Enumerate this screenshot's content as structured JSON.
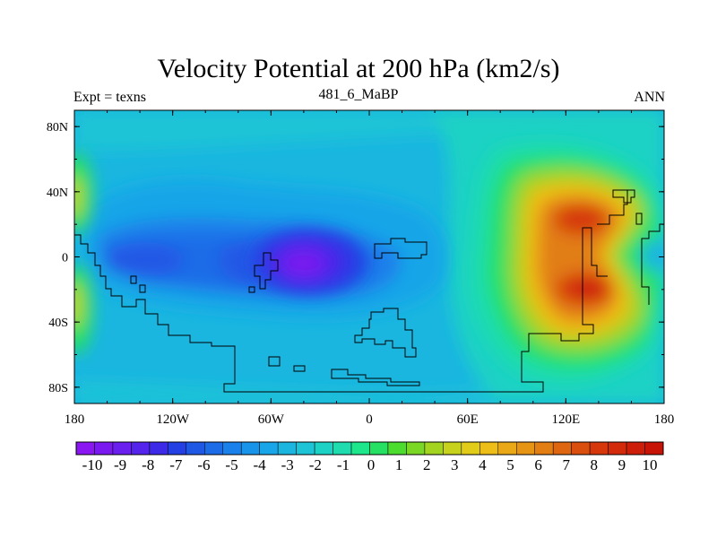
{
  "chart_data": {
    "type": "heatmap",
    "title": "Velocity Potential at 200 hPa (km2/s)",
    "left_string": "Expt = texns",
    "center_string": "481_6_MaBP",
    "right_string": "ANN",
    "x_axis": {
      "range": [
        -180,
        180
      ],
      "ticks": [
        {
          "value": -180,
          "label": "180"
        },
        {
          "value": -120,
          "label": "120W"
        },
        {
          "value": -60,
          "label": "60W"
        },
        {
          "value": 0,
          "label": "0"
        },
        {
          "value": 60,
          "label": "60E"
        },
        {
          "value": 120,
          "label": "120E"
        },
        {
          "value": 180,
          "label": "180"
        }
      ]
    },
    "y_axis": {
      "range": [
        -90,
        90
      ],
      "ticks": [
        {
          "value": 80,
          "label": "80N"
        },
        {
          "value": 40,
          "label": "40N"
        },
        {
          "value": 0,
          "label": "0"
        },
        {
          "value": -40,
          "label": "40S"
        },
        {
          "value": -80,
          "label": "80S"
        }
      ]
    },
    "colorbar": {
      "labels": [
        "-10",
        "-9",
        "-8",
        "-7",
        "-6",
        "-5",
        "-4",
        "-3",
        "-2",
        "-1",
        "0",
        "1",
        "2",
        "3",
        "4",
        "5",
        "6",
        "7",
        "8",
        "9",
        "10"
      ],
      "colors": [
        "#8a16f2",
        "#7a1af0",
        "#6a20ee",
        "#5424ec",
        "#3c2ae8",
        "#2440e4",
        "#2058e6",
        "#1c6ce8",
        "#1a80ea",
        "#1894ea",
        "#18a6e8",
        "#1ab6e0",
        "#1cc4d6",
        "#1cd2c4",
        "#1edcae",
        "#1ee68a",
        "#26e064",
        "#4cdc2e",
        "#7ad824",
        "#a2d420",
        "#c6d21c",
        "#e2cc1a",
        "#eebe18",
        "#eaa816",
        "#e69414",
        "#e27e12",
        "#de6610",
        "#da4e0e",
        "#d6380c",
        "#d22a0a",
        "#cc1e08",
        "#c81406"
      ]
    },
    "features": [
      {
        "name": "central-pacific-low",
        "lon": -30,
        "lat": -5,
        "value": -9.5
      },
      {
        "name": "south-pacific-low",
        "lon": -150,
        "lat": 0,
        "value": -5.5
      },
      {
        "name": "asian-high-north",
        "lon": 125,
        "lat": 25,
        "value": 8.3
      },
      {
        "name": "asian-high-south",
        "lon": 130,
        "lat": -20,
        "value": 8.7
      },
      {
        "name": "edge-high-west",
        "lon": -178,
        "lat": 35,
        "value": 3
      },
      {
        "name": "edge-high-west-south",
        "lon": -178,
        "lat": -35,
        "value": 3
      }
    ]
  }
}
